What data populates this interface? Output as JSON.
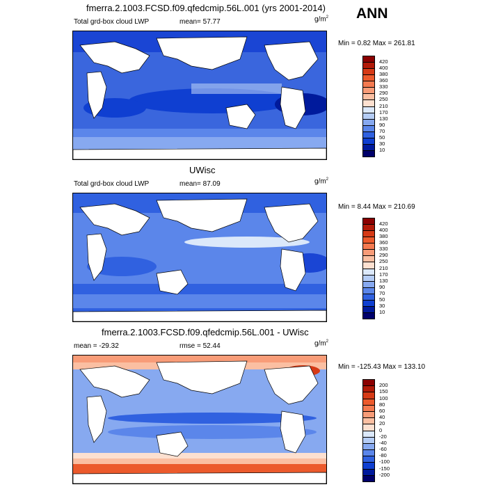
{
  "season": "ANN",
  "panels": [
    {
      "title": "fmerra.2.1003.FCSD.f09.qfedcmip.56L.001 (yrs 2001-2014)",
      "left_label": "Total grd-box cloud LWP",
      "stat_label": "mean=  57.77",
      "units": "g/m",
      "units_sup": "2",
      "minmax": "Min =   0.82 Max = 261.81",
      "levels": [
        "420",
        "400",
        "380",
        "360",
        "330",
        "290",
        "250",
        "210",
        "170",
        "130",
        "90",
        "70",
        "50",
        "30",
        "10"
      ],
      "colors": [
        "#8b0000",
        "#b21a08",
        "#d63a16",
        "#ec5a2c",
        "#f47a50",
        "#f89c78",
        "#fbbfa2",
        "#fde0d0",
        "#dbe8fa",
        "#b4ccf5",
        "#87a9f0",
        "#5b86ea",
        "#3061e0",
        "#0f3fd1",
        "#001a9c",
        "#00006b"
      ]
    },
    {
      "title": "UWisc",
      "left_label": "Total grd-box cloud LWP",
      "stat_label": "mean=  87.09",
      "units": "g/m",
      "units_sup": "2",
      "minmax": "Min =   8.44 Max = 210.69",
      "levels": [
        "420",
        "400",
        "380",
        "360",
        "330",
        "290",
        "250",
        "210",
        "170",
        "130",
        "90",
        "70",
        "50",
        "30",
        "10"
      ],
      "colors": [
        "#8b0000",
        "#b21a08",
        "#d63a16",
        "#ec5a2c",
        "#f47a50",
        "#f89c78",
        "#fbbfa2",
        "#fde0d0",
        "#dbe8fa",
        "#b4ccf5",
        "#87a9f0",
        "#5b86ea",
        "#3061e0",
        "#0f3fd1",
        "#001a9c",
        "#00006b"
      ]
    },
    {
      "title": "fmerra.2.1003.FCSD.f09.qfedcmip.56L.001 - UWisc",
      "left_label": "mean = -29.32",
      "stat_label": "rmse =  52.44",
      "units": "g/m",
      "units_sup": "2",
      "minmax": "Min = -125.43 Max = 133.10",
      "levels": [
        "200",
        "150",
        "100",
        "80",
        "60",
        "40",
        "20",
        "0",
        "-20",
        "-40",
        "-60",
        "-80",
        "-100",
        "-150",
        "-200"
      ],
      "colors": [
        "#8b0000",
        "#b21a08",
        "#d63a16",
        "#ec5a2c",
        "#f47a50",
        "#f89c78",
        "#fbbfa2",
        "#fde0d0",
        "#dbe8fa",
        "#b4ccf5",
        "#87a9f0",
        "#5b86ea",
        "#3061e0",
        "#0f3fd1",
        "#001a9c",
        "#00006b"
      ]
    }
  ]
}
